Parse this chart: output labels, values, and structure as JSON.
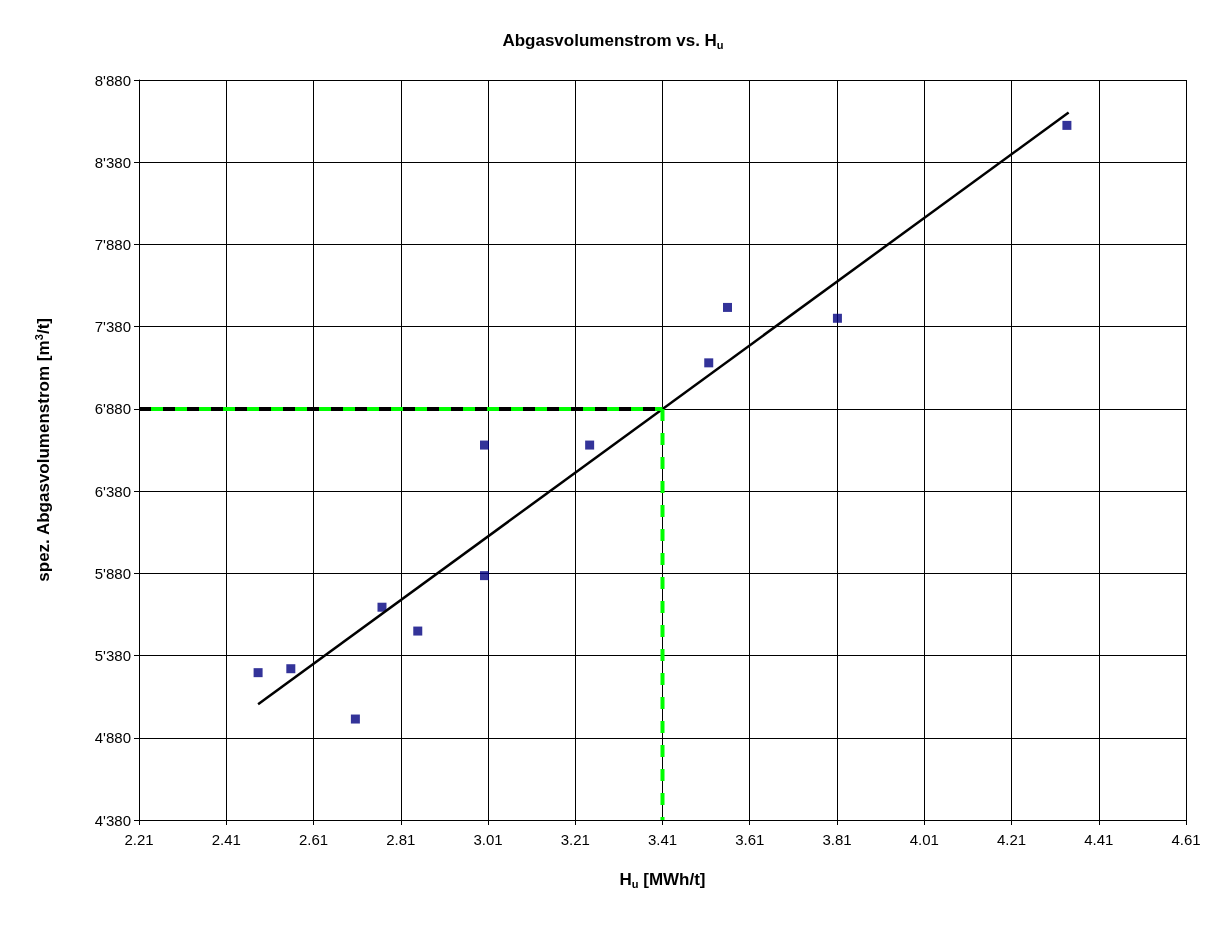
{
  "chart_data": {
    "type": "scatter",
    "title": "Abgasvolumenstrom vs. H$_{u}$",
    "xlabel": "H$_{u}$ [MWh/t]",
    "ylabel": "spez. Abgasvolumenstrom [m$^{3}$/t]",
    "xlim": [
      2.21,
      4.61
    ],
    "xticks": [
      2.21,
      2.41,
      2.61,
      2.81,
      3.01,
      3.21,
      3.41,
      3.61,
      3.81,
      4.01,
      4.21,
      4.41,
      4.61
    ],
    "ylim": [
      4380,
      8880
    ],
    "yticks": [
      {
        "value": 4380,
        "label": "4'380"
      },
      {
        "value": 4880,
        "label": "4'880"
      },
      {
        "value": 5380,
        "label": "5'380"
      },
      {
        "value": 5880,
        "label": "5'880"
      },
      {
        "value": 6380,
        "label": "6'380"
      },
      {
        "value": 6880,
        "label": "6'880"
      },
      {
        "value": 7380,
        "label": "7'380"
      },
      {
        "value": 7880,
        "label": "7'880"
      },
      {
        "value": 8380,
        "label": "8'380"
      },
      {
        "value": 8880,
        "label": "8'880"
      }
    ],
    "grid": true,
    "series": [
      {
        "color": "#000080",
        "marker": "square",
        "x": [
          2.483,
          2.558,
          2.706,
          2.767,
          2.849,
          3.002,
          3.002,
          3.243,
          3.516,
          3.559,
          3.811,
          4.337
        ],
        "values": [
          5276,
          5300,
          4994,
          5674,
          5529,
          6660,
          5866,
          6660,
          7160,
          7497,
          7431,
          8604
        ]
      },
      {
        "type": "line",
        "color": "#000000",
        "line_style": "solid",
        "x": [
          2.483,
          4.341
        ],
        "values": [
          5084,
          8682
        ]
      },
      {
        "type": "line",
        "color": "#000000",
        "line_style": "dashed",
        "x": [
          2.21,
          3.41
        ],
        "values": [
          6880,
          6880
        ]
      },
      {
        "type": "line",
        "color": "#00ff00",
        "line_style": "dashed",
        "x": [
          2.21,
          3.41
        ],
        "values": [
          6880,
          6880
        ]
      },
      {
        "type": "line",
        "color": "#00ff00",
        "line_style": "dashed",
        "x": [
          3.41,
          3.41
        ],
        "values": [
          6880,
          4380
        ]
      }
    ]
  }
}
